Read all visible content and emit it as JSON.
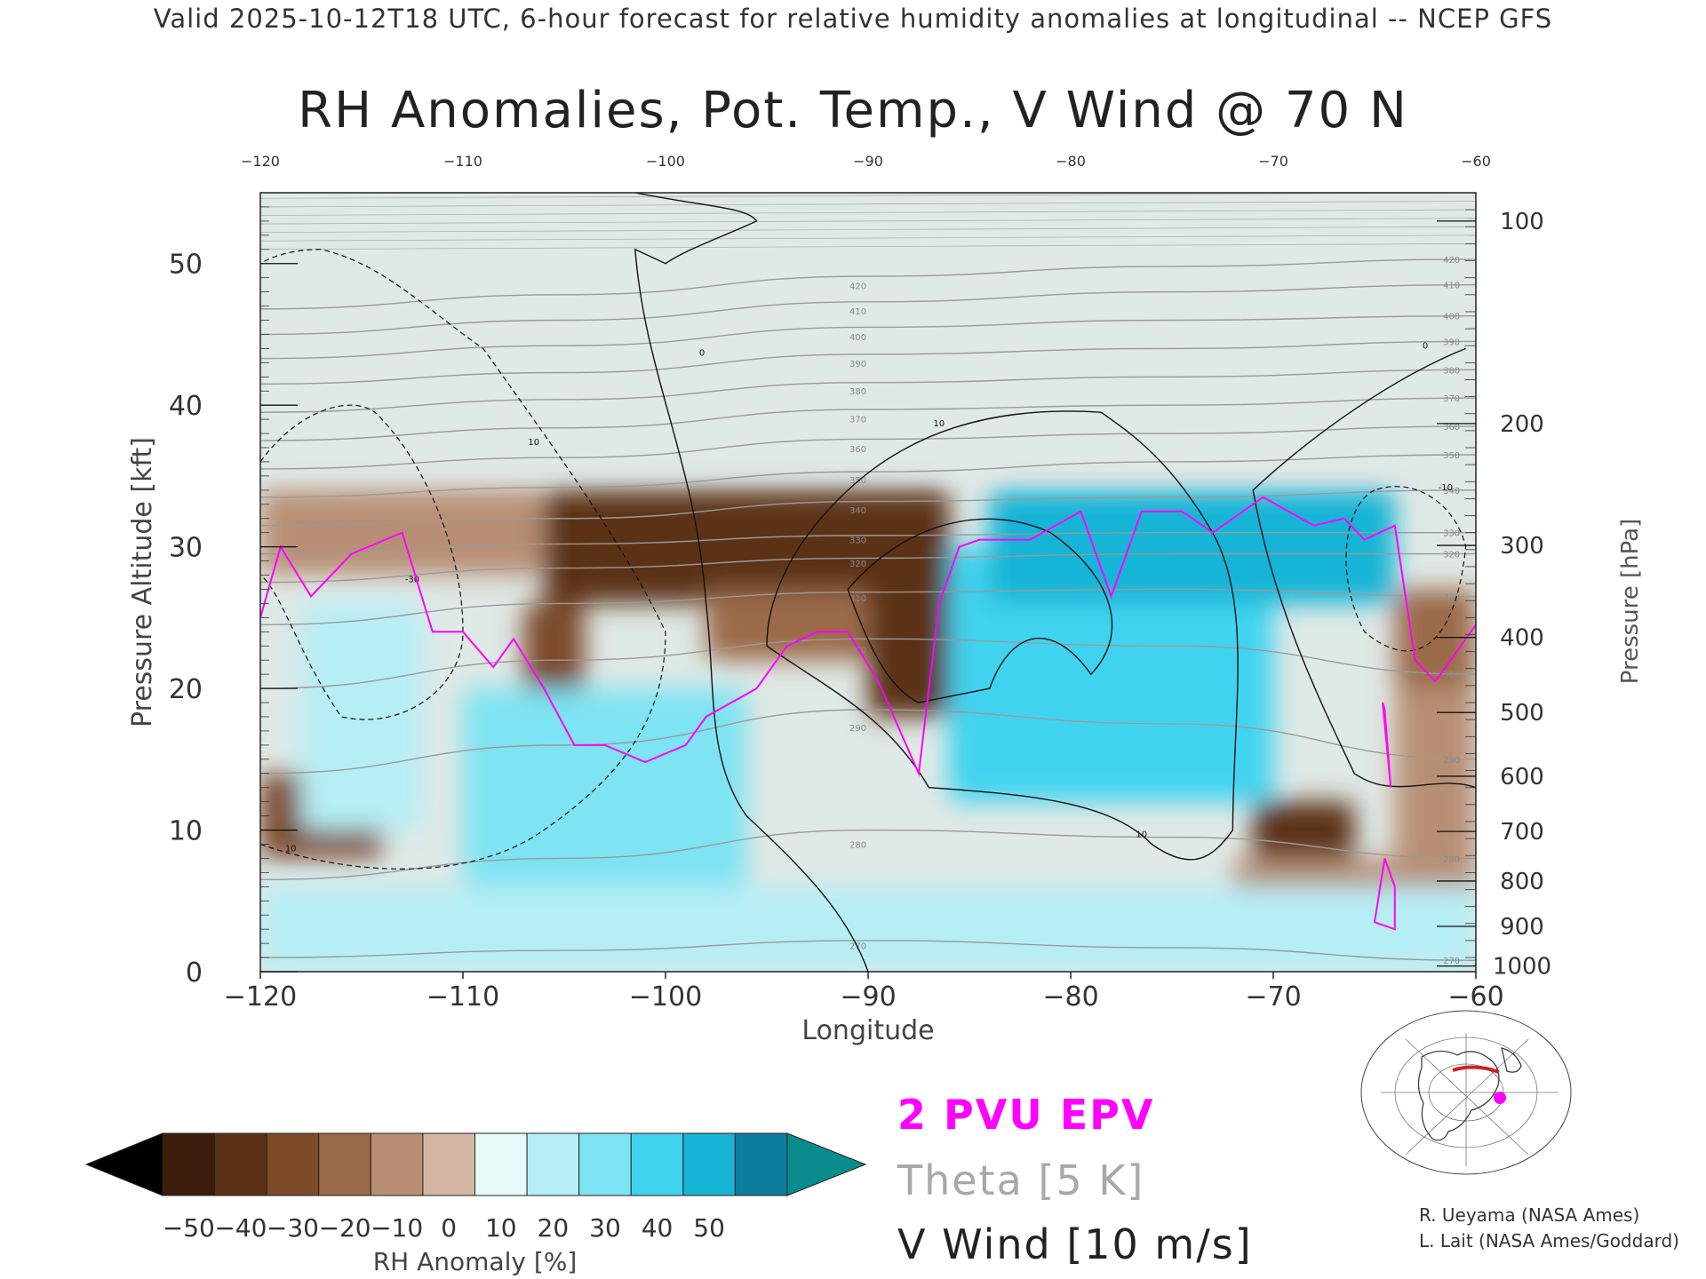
{
  "header": "Valid 2025-10-12T18 UTC, 6-hour forecast for relative humidity anomalies at longitudinal -- NCEP GFS",
  "title": "RH Anomalies, Pot. Temp., V Wind @ 70 N",
  "chart_data": {
    "type": "heatmap",
    "title": "RH Anomalies, Pot. Temp., V Wind @ 70 N",
    "xlabel": "Longitude",
    "ylabel": "Pressure Altitude [kft]",
    "y2label": "Pressure [hPa]",
    "xlim": [
      -120,
      -60
    ],
    "ylim": [
      0,
      55
    ],
    "x_ticks": [
      -120,
      -110,
      -100,
      -90,
      -80,
      -70,
      -60
    ],
    "x_tick_labels": [
      "−120",
      "−110",
      "−100",
      "−90",
      "−80",
      "−70",
      "−60"
    ],
    "top_x_tick_labels": [
      "−120",
      "−110",
      "−100",
      "−90",
      "−80",
      "−70",
      "−60"
    ],
    "y_ticks": [
      0,
      10,
      20,
      30,
      40,
      50
    ],
    "y_tick_labels": [
      "0",
      "10",
      "20",
      "30",
      "40",
      "50"
    ],
    "pressure_levels": [
      {
        "hPa": 100,
        "label": "100",
        "kft": 53.0
      },
      {
        "hPa": 200,
        "label": "200",
        "kft": 38.7
      },
      {
        "hPa": 300,
        "label": "300",
        "kft": 30.1
      },
      {
        "hPa": 400,
        "label": "400",
        "kft": 23.6
      },
      {
        "hPa": 500,
        "label": "500",
        "kft": 18.3
      },
      {
        "hPa": 600,
        "label": "600",
        "kft": 13.8
      },
      {
        "hPa": 700,
        "label": "700",
        "kft": 9.9
      },
      {
        "hPa": 800,
        "label": "800",
        "kft": 6.4
      },
      {
        "hPa": 900,
        "label": "900",
        "kft": 3.2
      },
      {
        "hPa": 1000,
        "label": "1000",
        "kft": 0.4
      }
    ],
    "rh_anomaly_regions": [
      {
        "x": [
          -120,
          -60
        ],
        "y": [
          36,
          55
        ],
        "value": 0
      },
      {
        "x": [
          -120,
          -106
        ],
        "y": [
          28,
          34
        ],
        "value": -20
      },
      {
        "x": [
          -106,
          -86
        ],
        "y": [
          26,
          34
        ],
        "value": -45
      },
      {
        "x": [
          -98,
          -90
        ],
        "y": [
          22,
          27
        ],
        "value": -30
      },
      {
        "x": [
          -90,
          -86
        ],
        "y": [
          18,
          28
        ],
        "value": -45
      },
      {
        "x": [
          -107,
          -104
        ],
        "y": [
          16,
          26
        ],
        "value": -35
      },
      {
        "x": [
          -120,
          -114
        ],
        "y": [
          8,
          14
        ],
        "value": -35
      },
      {
        "x": [
          -118,
          -112
        ],
        "y": [
          10,
          26
        ],
        "value": 10
      },
      {
        "x": [
          -110,
          -96
        ],
        "y": [
          6,
          20
        ],
        "value": 20
      },
      {
        "x": [
          -86,
          -70
        ],
        "y": [
          12,
          30
        ],
        "value": 35
      },
      {
        "x": [
          -84,
          -64
        ],
        "y": [
          26,
          34
        ],
        "value": 45
      },
      {
        "x": [
          -71,
          -66
        ],
        "y": [
          7,
          12
        ],
        "value": -45
      },
      {
        "x": [
          -72,
          -62
        ],
        "y": [
          0,
          8
        ],
        "value": -20
      },
      {
        "x": [
          -64,
          -60
        ],
        "y": [
          20,
          27
        ],
        "value": -30
      },
      {
        "x": [
          -64,
          -60
        ],
        "y": [
          0,
          20
        ],
        "value": -15
      },
      {
        "x": [
          -120,
          -60
        ],
        "y": [
          0,
          6
        ],
        "value": 10
      }
    ],
    "theta_contours": [
      {
        "label": "270",
        "kft": [
          1,
          1.5,
          2.2,
          1.7,
          0.8
        ]
      },
      {
        "label": "280",
        "kft": [
          6.5,
          8,
          10,
          9.5,
          8
        ]
      },
      {
        "label": "290",
        "kft": [
          14,
          16,
          18.5,
          17.5,
          15
        ]
      },
      {
        "label": "300",
        "kft": [
          20,
          22,
          23.5,
          23,
          21
        ]
      },
      {
        "label": "310",
        "kft": [
          24.5,
          26,
          26.8,
          27,
          26.5
        ]
      },
      {
        "label": "320",
        "kft": [
          27.5,
          28.5,
          29.2,
          29.5,
          29.5
        ]
      },
      {
        "label": "330",
        "kft": [
          29.5,
          30.2,
          30.8,
          31,
          31
        ]
      },
      {
        "label": "340",
        "kft": [
          31.5,
          32,
          33.2,
          33.5,
          34
        ]
      },
      {
        "label": "350",
        "kft": [
          33.5,
          34.2,
          35.3,
          36,
          36.5
        ]
      },
      {
        "label": "360",
        "kft": [
          35.5,
          36.3,
          37.6,
          38,
          38.5
        ]
      },
      {
        "label": "370",
        "kft": [
          37.5,
          38.4,
          39.7,
          40,
          40.5
        ]
      },
      {
        "label": "380",
        "kft": [
          39.5,
          40.4,
          41.6,
          42,
          42.5
        ]
      },
      {
        "label": "390",
        "kft": [
          41.5,
          42.3,
          43.6,
          44,
          44.5
        ]
      },
      {
        "label": "400",
        "kft": [
          43.3,
          44.2,
          45.5,
          46,
          46.3
        ]
      },
      {
        "label": "410",
        "kft": [
          45,
          46,
          47.3,
          48,
          48.5
        ]
      },
      {
        "label": "420",
        "kft": [
          46.8,
          47.8,
          49.1,
          49.8,
          50.3
        ]
      }
    ],
    "theta_x": [
      -120,
      -105,
      -90,
      -75,
      -60
    ],
    "epv_2pvu_line": [
      [
        -120,
        25
      ],
      [
        -119,
        30
      ],
      [
        -117.5,
        26.5
      ],
      [
        -115.5,
        29.5
      ],
      [
        -113,
        31
      ],
      [
        -111.5,
        24
      ],
      [
        -110,
        24
      ],
      [
        -108.5,
        21.5
      ],
      [
        -107.5,
        23.5
      ],
      [
        -106,
        20
      ],
      [
        -104.5,
        16
      ],
      [
        -103,
        16
      ],
      [
        -101,
        14.8
      ],
      [
        -99,
        16
      ],
      [
        -98,
        18
      ],
      [
        -95.5,
        20
      ],
      [
        -94,
        23
      ],
      [
        -92.5,
        24
      ],
      [
        -91,
        24
      ],
      [
        -89.5,
        20.5
      ],
      [
        -87.5,
        14
      ],
      [
        -86.5,
        26
      ],
      [
        -85.5,
        30
      ],
      [
        -84.5,
        30.5
      ],
      [
        -82,
        30.5
      ],
      [
        -79.5,
        32.5
      ],
      [
        -78,
        26.5
      ],
      [
        -76.5,
        32.5
      ],
      [
        -74.5,
        32.5
      ],
      [
        -73,
        31
      ],
      [
        -70.5,
        33.5
      ],
      [
        -68,
        31.5
      ],
      [
        -66.5,
        32
      ],
      [
        -65.5,
        30.5
      ],
      [
        -64,
        31.5
      ],
      [
        -63,
        22
      ],
      [
        -62,
        20.5
      ],
      [
        -60,
        24.5
      ]
    ],
    "v_wind_contour_labels": [
      "0",
      "10",
      "-10",
      "-30"
    ],
    "legend": [
      "2 PVU EPV",
      "Theta [5 K]",
      "V Wind [10 m/s]"
    ]
  },
  "colorbar": {
    "label": "RH Anomaly [%]",
    "tick_labels": [
      "−50",
      "−40",
      "−30",
      "−20",
      "−10",
      "0",
      "10",
      "20",
      "30",
      "40",
      "50"
    ],
    "colors": [
      "#3b1d0c",
      "#5c3014",
      "#7d4a2a",
      "#9b6a4a",
      "#b88f74",
      "#d4b7a2",
      "#e6f8f8",
      "#b6eef5",
      "#7ee3f2",
      "#3fd3ef",
      "#18b4d6",
      "#0b7e9e"
    ],
    "under_color": "#000000",
    "over_color": "#0b8c8c"
  },
  "legend": {
    "epv": "2 PVU EPV",
    "theta": "Theta [5 K]",
    "wind": "V Wind [10 m/s]"
  },
  "credits": {
    "line1": "R. Ueyama (NASA Ames)",
    "line2": "L. Lait (NASA Ames/Goddard)"
  },
  "inset_map": {
    "icon": "globe-map-icon"
  }
}
